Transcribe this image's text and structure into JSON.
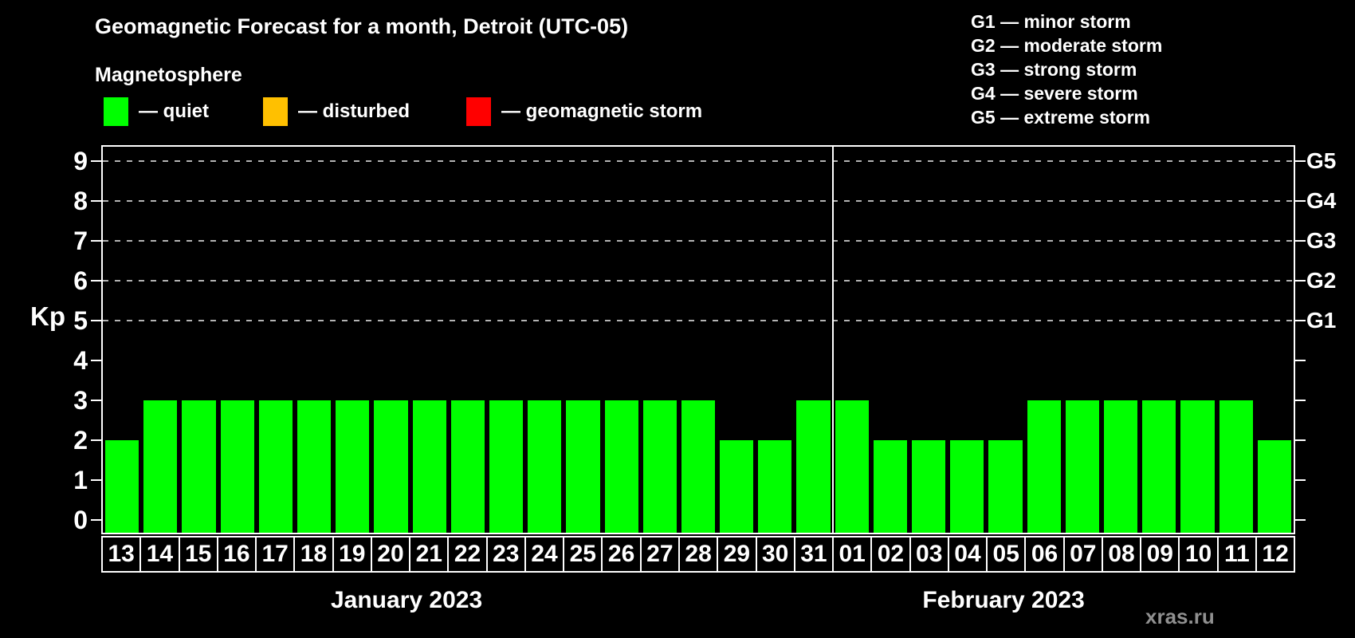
{
  "page": {
    "title": "Geomagnetic Forecast for a month, Detroit (UTC-05)",
    "watermark": "xras.ru"
  },
  "legend": {
    "heading": "Magnetosphere",
    "items": [
      {
        "name": "quiet",
        "label": "— quiet",
        "color": "#00ff00"
      },
      {
        "name": "disturbed",
        "label": "— disturbed",
        "color": "#ffc000"
      },
      {
        "name": "storm",
        "label": "— geomagnetic storm",
        "color": "#ff0000"
      }
    ]
  },
  "g_legend": {
    "lines": [
      "G1 — minor storm",
      "G2 — moderate storm",
      "G3 — strong storm",
      "G4 — severe storm",
      "G5 — extreme storm"
    ]
  },
  "chart_data": {
    "type": "bar",
    "title": "Geomagnetic Forecast for a month, Detroit (UTC-05)",
    "ylabel": "Kp",
    "ylim": [
      0,
      9.4
    ],
    "yticks": [
      0,
      1,
      2,
      3,
      4,
      5,
      6,
      7,
      8,
      9
    ],
    "grid_levels": [
      5,
      6,
      7,
      8,
      9
    ],
    "right_axis_labels": [
      {
        "level": 5,
        "text": "G1"
      },
      {
        "level": 6,
        "text": "G2"
      },
      {
        "level": 7,
        "text": "G3"
      },
      {
        "level": 8,
        "text": "G4"
      },
      {
        "level": 9,
        "text": "G5"
      }
    ],
    "bar_colors": {
      "quiet": "#00ff00",
      "disturbed": "#ffc000",
      "storm": "#ff0000"
    },
    "color_thresholds": {
      "disturbed_min": 4,
      "storm_min": 5
    },
    "months": [
      {
        "label": "January 2023",
        "days": [
          "13",
          "14",
          "15",
          "16",
          "17",
          "18",
          "19",
          "20",
          "21",
          "22",
          "23",
          "24",
          "25",
          "26",
          "27",
          "28",
          "29",
          "30",
          "31"
        ],
        "values": [
          2,
          3,
          3,
          3,
          3,
          3,
          3,
          3,
          3,
          3,
          3,
          3,
          3,
          3,
          3,
          3,
          2,
          2,
          3
        ]
      },
      {
        "label": "February 2023",
        "days": [
          "01",
          "02",
          "03",
          "04",
          "05",
          "06",
          "07",
          "08",
          "09",
          "10",
          "11",
          "12"
        ],
        "values": [
          3,
          2,
          2,
          2,
          2,
          3,
          3,
          3,
          3,
          3,
          3,
          2
        ]
      }
    ]
  }
}
